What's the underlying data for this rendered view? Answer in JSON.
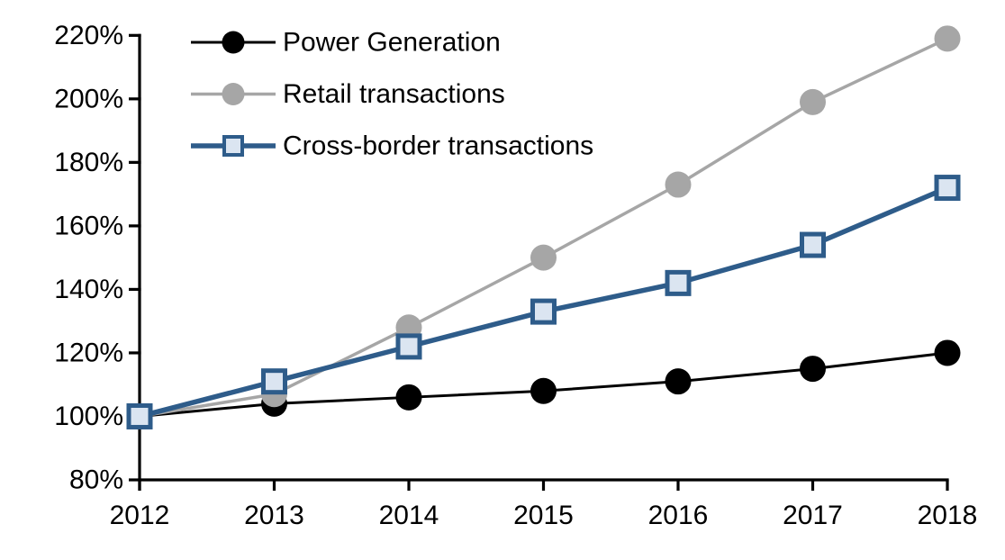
{
  "chart_data": {
    "type": "line",
    "title": "",
    "xlabel": "",
    "ylabel": "",
    "x": [
      2012,
      2013,
      2014,
      2015,
      2016,
      2017,
      2018
    ],
    "x_tick_labels": [
      "2012",
      "2013",
      "2014",
      "2015",
      "2016",
      "2017",
      "2018"
    ],
    "y_tick_labels": [
      "80%",
      "100%",
      "120%",
      "140%",
      "160%",
      "180%",
      "200%",
      "220%"
    ],
    "ylim": [
      80,
      220
    ],
    "ytick_step": 20,
    "y_unit": "percent-index (2012 = 100%)",
    "grid": false,
    "legend_position": "top-left",
    "axis_color": "#000000",
    "background_color": "#FFFFFF",
    "series": [
      {
        "name": "Power Generation",
        "values": [
          100,
          104,
          106,
          108,
          111,
          115,
          120
        ],
        "color": "#000000",
        "marker": "circle",
        "marker_fill": "#000000",
        "line_width": 3
      },
      {
        "name": "Retail transactions",
        "values": [
          100,
          107,
          128,
          150,
          173,
          199,
          219
        ],
        "color": "#A6A6A6",
        "marker": "circle",
        "marker_fill": "#A6A6A6",
        "line_width": 3.5
      },
      {
        "name": "Cross-border transactions",
        "values": [
          100,
          111,
          122,
          133,
          142,
          154,
          172
        ],
        "color": "#2E5C8A",
        "marker": "square",
        "marker_fill": "#DBE5F1",
        "line_width": 5.5
      }
    ]
  }
}
